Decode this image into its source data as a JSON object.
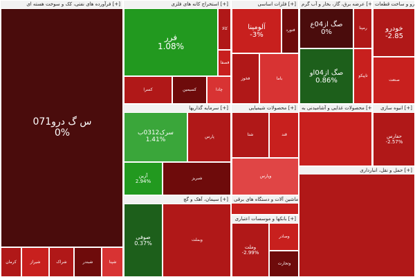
{
  "sectors": [
    {
      "title": "فرآورده های نفتی، کک و سوخت هسته ای [+]"
    },
    {
      "title": "استخراج کانه های فلزی [+]"
    },
    {
      "title": "فلزات اساسی [+]"
    },
    {
      "title": "عرضه برق، گاز، بخار و آب گرم [+]"
    },
    {
      "title": "خودرو و ساخت قطعات [+]"
    },
    {
      "title": "سرمایه گذاریها [+]"
    },
    {
      "title": "محصولات شیمیایی [+]"
    },
    {
      "title": "محصولات غذایی و آشامیدنی به [+]"
    },
    {
      "title": "انبوه سازی [+]"
    },
    {
      "title": "حمل و نقل، انبارداری [+]"
    },
    {
      "title": "سیمان، آهک و گچ [+]"
    },
    {
      "title": "ماشین آلات و دستگاه های برقی [+]"
    },
    {
      "title": "بانکها و موسسات اعتباری [+]"
    }
  ],
  "tiles": {
    "big_left": {
      "symbol": "س گ درو071",
      "pct": "0%"
    },
    "farr": {
      "symbol": "فرر",
      "pct": "1.08%"
    },
    "alumina": {
      "symbol": "آلومینا",
      "pct": "-3%"
    },
    "sak04a": {
      "symbol": "صگ از04ع",
      "pct": "0%"
    },
    "sak04o": {
      "symbol": "صگ از04او",
      "pct": "0.86%"
    },
    "khodro": {
      "symbol": "خودرو",
      "pct": "-2.85"
    },
    "sarak": {
      "symbol": "سرک0312ب",
      "pct": "1.41%"
    },
    "azin": {
      "symbol": "آزین",
      "pct": "2.94%"
    },
    "sofi": {
      "symbol": "صوفی",
      "pct": "0.37%"
    },
    "vamelat": {
      "symbol": "وملت",
      "pct": "-2.99%"
    },
    "hafarsh": {
      "symbol": "حفارس",
      "pct": "-2.57%"
    },
    "parsan": {
      "symbol": "پارس",
      "pct": ""
    },
    "kala": {
      "symbol": "کالا",
      "pct": ""
    },
    "shata": {
      "symbol": "شتا",
      "pct": ""
    },
    "fakhz": {
      "symbol": "فخوز",
      "pct": ""
    },
    "saderat": {
      "symbol": "وصادر",
      "pct": ""
    },
    "tejarat": {
      "symbol": "وتجارت",
      "pct": ""
    },
    "shepna": {
      "symbol": "شپنا",
      "pct": ""
    },
    "ghe": {
      "symbol": "قند",
      "pct": ""
    },
    "rmapna": {
      "symbol": "رمپنا",
      "pct": ""
    },
    "kermen": {
      "symbol": "کرمان",
      "pct": ""
    },
    "shiraz": {
      "symbol": "شیراز",
      "pct": ""
    },
    "sharak": {
      "symbol": "شراک",
      "pct": ""
    },
    "shebandar": {
      "symbol": "شبندر",
      "pct": ""
    },
    "chadi": {
      "symbol": "چادا",
      "pct": ""
    },
    "kasra": {
      "symbol": "کسرا",
      "pct": ""
    },
    "baskoo": {
      "symbol": "باما",
      "pct": ""
    },
    "tapco": {
      "symbol": "تاپیکو",
      "pct": ""
    },
    "shebris": {
      "symbol": "شبریز",
      "pct": ""
    },
    "vpars": {
      "symbol": "وپارس",
      "pct": ""
    },
    "vbmlt": {
      "symbol": "وبملت",
      "pct": ""
    },
    "ksimin": {
      "symbol": "کسیمین",
      "pct": ""
    },
    "fsaf": {
      "symbol": "فصفا",
      "pct": ""
    },
    "ftor": {
      "symbol": "فنورد",
      "pct": ""
    },
    "sanat": {
      "symbol": "صنعت",
      "pct": ""
    }
  }
}
